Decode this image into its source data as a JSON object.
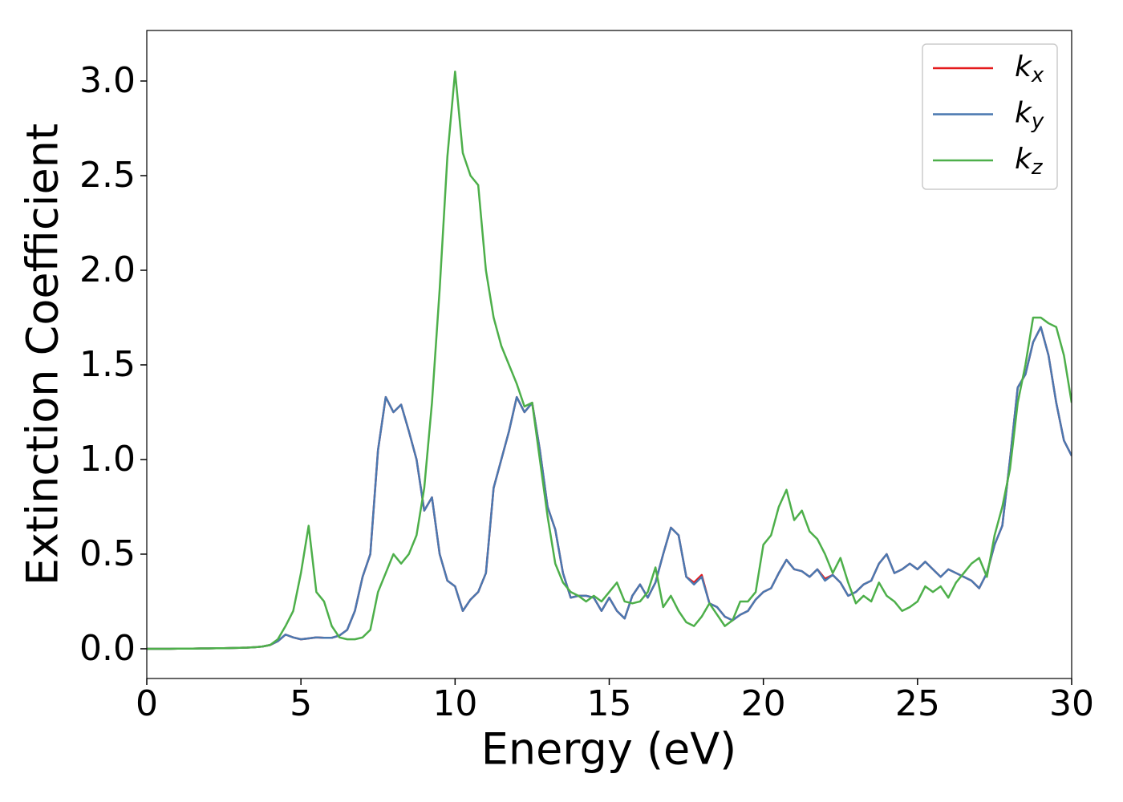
{
  "chart_data": {
    "type": "line",
    "xlabel": "Energy (eV)",
    "ylabel": "Extinction Coefficient",
    "x": [
      0,
      0.25,
      0.5,
      0.75,
      1,
      1.25,
      1.5,
      1.75,
      2,
      2.25,
      2.5,
      2.75,
      3,
      3.25,
      3.5,
      3.75,
      4,
      4.25,
      4.5,
      4.75,
      5,
      5.25,
      5.5,
      5.75,
      6,
      6.25,
      6.5,
      6.75,
      7,
      7.25,
      7.5,
      7.75,
      8,
      8.25,
      8.5,
      8.75,
      9,
      9.25,
      9.5,
      9.75,
      10,
      10.25,
      10.5,
      10.75,
      11,
      11.25,
      11.5,
      11.75,
      12,
      12.25,
      12.5,
      12.75,
      13,
      13.25,
      13.5,
      13.75,
      14,
      14.25,
      14.5,
      14.75,
      15,
      15.25,
      15.5,
      15.75,
      16,
      16.25,
      16.5,
      16.75,
      17,
      17.25,
      17.5,
      17.75,
      18,
      18.25,
      18.5,
      18.75,
      19,
      19.25,
      19.5,
      19.75,
      20,
      20.25,
      20.5,
      20.75,
      21,
      21.25,
      21.5,
      21.75,
      22,
      22.25,
      22.5,
      22.75,
      23,
      23.25,
      23.5,
      23.75,
      24,
      24.25,
      24.5,
      24.75,
      25,
      25.25,
      25.5,
      25.75,
      26,
      26.25,
      26.5,
      26.75,
      27,
      27.25,
      27.5,
      27.75,
      28,
      28.25,
      28.5,
      28.75,
      29,
      29.25,
      29.5,
      29.75,
      30
    ],
    "series": [
      {
        "name": "kx",
        "color": "#e41a1c",
        "values": [
          0,
          0,
          0,
          0,
          0.001,
          0.001,
          0.001,
          0.002,
          0.002,
          0.003,
          0.003,
          0.004,
          0.005,
          0.006,
          0.008,
          0.012,
          0.02,
          0.04,
          0.075,
          0.06,
          0.05,
          0.055,
          0.06,
          0.058,
          0.058,
          0.07,
          0.1,
          0.2,
          0.38,
          0.5,
          1.05,
          1.33,
          1.25,
          1.29,
          1.15,
          1.0,
          0.73,
          0.8,
          0.5,
          0.36,
          0.33,
          0.2,
          0.26,
          0.3,
          0.4,
          0.85,
          1.0,
          1.15,
          1.33,
          1.25,
          1.3,
          1.05,
          0.75,
          0.63,
          0.4,
          0.27,
          0.28,
          0.28,
          0.27,
          0.2,
          0.27,
          0.2,
          0.16,
          0.28,
          0.34,
          0.27,
          0.35,
          0.5,
          0.64,
          0.6,
          0.38,
          0.35,
          0.39,
          0.24,
          0.22,
          0.17,
          0.15,
          0.18,
          0.2,
          0.26,
          0.3,
          0.32,
          0.4,
          0.47,
          0.42,
          0.41,
          0.38,
          0.42,
          0.37,
          0.39,
          0.35,
          0.28,
          0.3,
          0.34,
          0.36,
          0.45,
          0.5,
          0.4,
          0.42,
          0.45,
          0.42,
          0.46,
          0.42,
          0.38,
          0.42,
          0.4,
          0.38,
          0.36,
          0.32,
          0.4,
          0.55,
          0.65,
          1.0,
          1.38,
          1.45,
          1.62,
          1.7,
          1.55,
          1.3,
          1.1,
          1.02
        ]
      },
      {
        "name": "ky",
        "color": "#4a78b0",
        "values": [
          0,
          0,
          0,
          0,
          0.001,
          0.001,
          0.001,
          0.002,
          0.002,
          0.003,
          0.003,
          0.004,
          0.005,
          0.006,
          0.008,
          0.012,
          0.02,
          0.04,
          0.075,
          0.06,
          0.05,
          0.055,
          0.06,
          0.058,
          0.058,
          0.07,
          0.1,
          0.2,
          0.38,
          0.5,
          1.05,
          1.33,
          1.25,
          1.29,
          1.15,
          1.0,
          0.73,
          0.8,
          0.5,
          0.36,
          0.33,
          0.2,
          0.26,
          0.3,
          0.4,
          0.85,
          1.0,
          1.15,
          1.33,
          1.25,
          1.3,
          1.05,
          0.75,
          0.63,
          0.4,
          0.27,
          0.28,
          0.28,
          0.27,
          0.2,
          0.27,
          0.2,
          0.16,
          0.28,
          0.34,
          0.27,
          0.35,
          0.5,
          0.64,
          0.6,
          0.38,
          0.34,
          0.38,
          0.24,
          0.22,
          0.17,
          0.15,
          0.18,
          0.2,
          0.26,
          0.3,
          0.32,
          0.4,
          0.47,
          0.42,
          0.41,
          0.38,
          0.42,
          0.36,
          0.39,
          0.35,
          0.28,
          0.3,
          0.34,
          0.36,
          0.45,
          0.5,
          0.4,
          0.42,
          0.45,
          0.42,
          0.46,
          0.42,
          0.38,
          0.42,
          0.4,
          0.38,
          0.36,
          0.32,
          0.4,
          0.55,
          0.65,
          1.0,
          1.38,
          1.45,
          1.62,
          1.7,
          1.55,
          1.3,
          1.1,
          1.02
        ]
      },
      {
        "name": "kz",
        "color": "#4daf4a",
        "values": [
          0,
          0,
          0,
          0,
          0.001,
          0.001,
          0.001,
          0.002,
          0.002,
          0.003,
          0.003,
          0.004,
          0.005,
          0.006,
          0.008,
          0.012,
          0.02,
          0.05,
          0.12,
          0.2,
          0.4,
          0.65,
          0.3,
          0.25,
          0.12,
          0.06,
          0.05,
          0.05,
          0.06,
          0.1,
          0.3,
          0.4,
          0.5,
          0.45,
          0.5,
          0.6,
          0.85,
          1.3,
          1.9,
          2.6,
          3.05,
          2.62,
          2.5,
          2.45,
          2.0,
          1.75,
          1.6,
          1.5,
          1.4,
          1.28,
          1.3,
          1.0,
          0.7,
          0.45,
          0.35,
          0.3,
          0.28,
          0.25,
          0.28,
          0.25,
          0.3,
          0.35,
          0.25,
          0.24,
          0.25,
          0.3,
          0.43,
          0.22,
          0.28,
          0.2,
          0.14,
          0.12,
          0.17,
          0.24,
          0.18,
          0.12,
          0.15,
          0.25,
          0.25,
          0.3,
          0.55,
          0.6,
          0.75,
          0.84,
          0.68,
          0.73,
          0.62,
          0.58,
          0.5,
          0.4,
          0.48,
          0.35,
          0.24,
          0.28,
          0.25,
          0.35,
          0.28,
          0.25,
          0.2,
          0.22,
          0.25,
          0.33,
          0.3,
          0.33,
          0.27,
          0.35,
          0.4,
          0.45,
          0.48,
          0.38,
          0.6,
          0.75,
          0.95,
          1.3,
          1.5,
          1.75,
          1.75,
          1.72,
          1.7,
          1.55,
          1.3
        ]
      }
    ],
    "xlim": [
      0,
      30
    ],
    "xticks": [
      0,
      5,
      10,
      15,
      20,
      25,
      30
    ],
    "ylim": [
      -0.157,
      3.267
    ],
    "yticks": [
      {
        "value": 0,
        "label": "0.0"
      },
      0.5,
      {
        "value": 1,
        "label": "1.0"
      },
      1.5,
      {
        "value": 2,
        "label": "2.0"
      },
      2.5,
      {
        "value": 3,
        "label": "3.0"
      }
    ],
    "legend": "upper right",
    "grid": false
  }
}
